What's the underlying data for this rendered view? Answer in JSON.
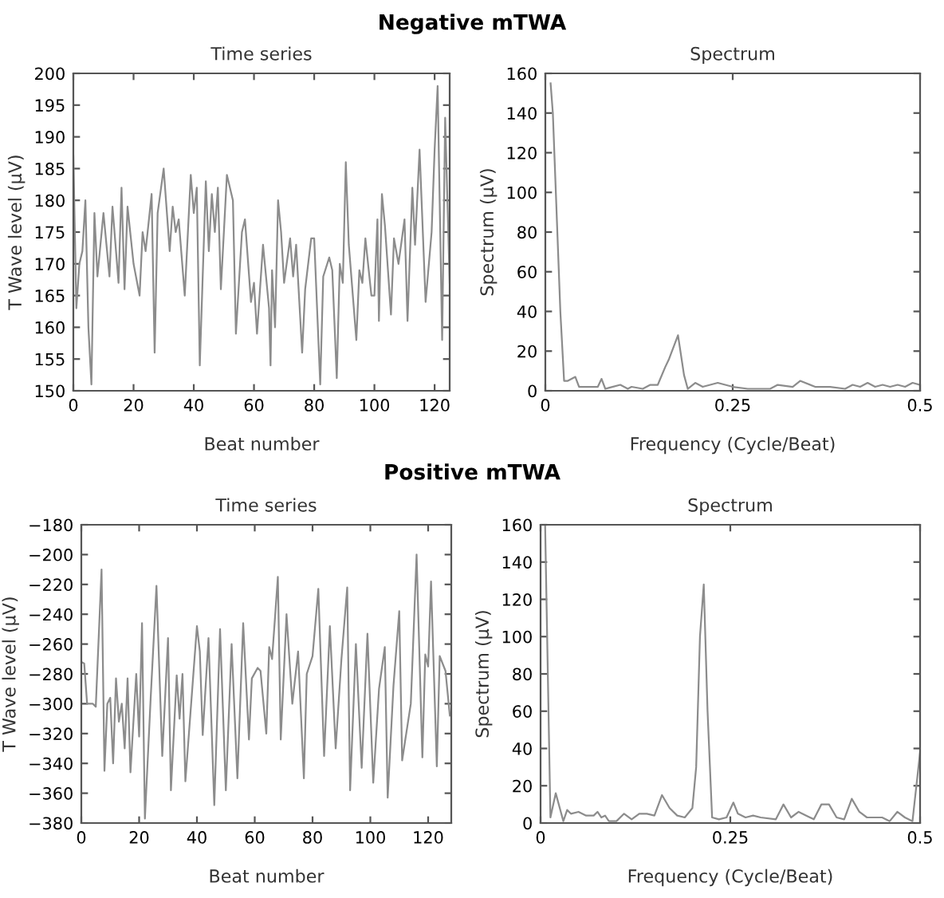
{
  "chart_data": [
    {
      "type": "line",
      "title": "Negative mTWA",
      "subtitle": "Time series",
      "xlabel": "Beat number",
      "ylabel": "T Wave level (μV)",
      "xlim": [
        0,
        125
      ],
      "ylim": [
        150,
        200
      ],
      "xticks": [
        0,
        20,
        40,
        60,
        80,
        100,
        120
      ],
      "yticks": [
        150,
        155,
        160,
        165,
        170,
        175,
        180,
        185,
        190,
        195,
        200
      ],
      "series": [
        {
          "color": "#8c8c8c",
          "x": [
            0,
            1,
            2,
            3,
            4,
            5,
            6,
            7,
            8,
            10,
            12,
            13,
            15,
            16,
            17,
            18,
            20,
            22,
            23,
            24,
            26,
            27,
            28,
            30,
            32,
            33,
            34,
            35,
            37,
            39,
            40,
            41,
            42,
            44,
            45,
            46,
            47,
            48,
            49,
            51,
            53,
            54,
            56,
            57,
            59,
            60,
            61,
            63,
            65,
            65.5,
            66,
            67,
            68,
            69,
            70,
            72,
            73,
            74,
            76,
            77,
            79,
            80,
            82,
            83,
            85,
            86,
            87.5,
            88.5,
            89.5,
            90.5,
            91.5,
            94,
            95,
            96,
            97,
            99,
            100,
            101,
            101.5,
            102.5,
            103.5,
            105.5,
            106.5,
            108,
            110,
            111,
            112.6,
            113.5,
            115,
            117,
            119,
            120,
            121,
            122.5,
            123.5,
            125
          ],
          "values": [
            187,
            163,
            170,
            172,
            180,
            160,
            151,
            178,
            168,
            178,
            168,
            179,
            167,
            182,
            166,
            179,
            170,
            165,
            175,
            172,
            181,
            156,
            178,
            185,
            172,
            179,
            175,
            177,
            165,
            184,
            178,
            182,
            154,
            183,
            172,
            181,
            175,
            182,
            166,
            184,
            180,
            159,
            175,
            177,
            164,
            167,
            159,
            173,
            163,
            154,
            169,
            160,
            180,
            175,
            167,
            174,
            168,
            173,
            156,
            166,
            174,
            174,
            151,
            168,
            171,
            169,
            152,
            170,
            167,
            186,
            173,
            158,
            169,
            167,
            174,
            165,
            165,
            177,
            161,
            181,
            176,
            162,
            174,
            170,
            177,
            161,
            182,
            173,
            188,
            164,
            175,
            188,
            198,
            158,
            193,
            167
          ]
        }
      ]
    },
    {
      "type": "line",
      "title": "Spectrum",
      "xlabel": "Frequency (Cycle/Beat)",
      "ylabel": "Spectrum (μV)",
      "xlim": [
        0,
        0.5
      ],
      "ylim": [
        0,
        160
      ],
      "xticks": [
        0,
        0.25,
        0.5
      ],
      "yticks": [
        0,
        20,
        40,
        60,
        80,
        100,
        120,
        140,
        160
      ],
      "series": [
        {
          "color": "#8c8c8c",
          "x": [
            0.007,
            0.01,
            0.02,
            0.025,
            0.03,
            0.04,
            0.045,
            0.07,
            0.075,
            0.08,
            0.1,
            0.11,
            0.115,
            0.13,
            0.14,
            0.15,
            0.16,
            0.165,
            0.177,
            0.185,
            0.19,
            0.2,
            0.21,
            0.23,
            0.24,
            0.25,
            0.27,
            0.3,
            0.31,
            0.33,
            0.34,
            0.36,
            0.38,
            0.4,
            0.41,
            0.42,
            0.43,
            0.44,
            0.45,
            0.46,
            0.47,
            0.48,
            0.49,
            0.5
          ],
          "values": [
            155,
            140,
            40,
            5,
            5,
            7,
            2,
            2,
            6,
            1,
            3,
            1,
            2,
            1,
            3,
            3,
            12,
            16,
            28,
            8,
            1,
            4,
            2,
            4,
            3,
            2,
            1,
            1,
            3,
            2,
            5,
            2,
            2,
            1,
            3,
            2,
            4,
            2,
            3,
            2,
            3,
            2,
            4,
            3
          ]
        }
      ]
    },
    {
      "type": "line",
      "title": "Positive mTWA",
      "subtitle": "Time series",
      "xlabel": "Beat number",
      "ylabel": "T Wave level (μV)",
      "xlim": [
        0,
        128
      ],
      "ylim": [
        -380,
        -180
      ],
      "xticks": [
        0,
        20,
        40,
        60,
        80,
        100,
        120
      ],
      "yticks": [
        {
          "value": -380,
          "label": "−380"
        },
        {
          "value": -360,
          "label": "−360"
        },
        {
          "value": -340,
          "label": "−340"
        },
        {
          "value": -320,
          "label": "−320"
        },
        {
          "value": -300,
          "label": "−300"
        },
        {
          "value": -280,
          "label": "−280"
        },
        {
          "value": -260,
          "label": "−260"
        },
        {
          "value": -240,
          "label": "−240"
        },
        {
          "value": -220,
          "label": "−220"
        },
        {
          "value": -200,
          "label": "−200"
        },
        {
          "value": -180,
          "label": "−180"
        }
      ],
      "series": [
        {
          "color": "#8c8c8c",
          "x": [
            0,
            1,
            2,
            4,
            5,
            7,
            8,
            9,
            10,
            11,
            12,
            13,
            14,
            15,
            16,
            17,
            19,
            20,
            21,
            22,
            24,
            26,
            28,
            30,
            31,
            33,
            34,
            35,
            36,
            38,
            40,
            41,
            42,
            44,
            46,
            48,
            50,
            52,
            54,
            56,
            58,
            59,
            61,
            62,
            64,
            65,
            66,
            68,
            69,
            71,
            73,
            75,
            77,
            78,
            80,
            82,
            84,
            86,
            88,
            90,
            92,
            93,
            95,
            97,
            99,
            101,
            103,
            105,
            106,
            108,
            110,
            111,
            114,
            116,
            118,
            119,
            120,
            121,
            123,
            124,
            126,
            127.5
          ],
          "values": [
            -272,
            -273,
            -300,
            -300,
            -302,
            -210,
            -345,
            -300,
            -296,
            -340,
            -283,
            -312,
            -300,
            -330,
            -283,
            -346,
            -280,
            -322,
            -246,
            -377,
            -296,
            -221,
            -335,
            -256,
            -358,
            -281,
            -310,
            -280,
            -352,
            -300,
            -248,
            -265,
            -321,
            -256,
            -368,
            -250,
            -358,
            -260,
            -350,
            -246,
            -324,
            -283,
            -276,
            -278,
            -320,
            -262,
            -270,
            -215,
            -324,
            -240,
            -300,
            -265,
            -350,
            -280,
            -268,
            -223,
            -335,
            -248,
            -330,
            -270,
            -222,
            -358,
            -260,
            -343,
            -253,
            -353,
            -290,
            -262,
            -363,
            -288,
            -238,
            -338,
            -300,
            -200,
            -336,
            -267,
            -275,
            -218,
            -342,
            -268,
            -278,
            -308
          ]
        }
      ]
    },
    {
      "type": "line",
      "title": "Spectrum",
      "xlabel": "Frequency (Cycle/Beat)",
      "ylabel": "Spectrum (μV)",
      "xlim": [
        0,
        0.5
      ],
      "ylim": [
        0,
        160
      ],
      "xticks": [
        0,
        0.25,
        0.5
      ],
      "yticks": [
        0,
        20,
        40,
        60,
        80,
        100,
        120,
        140,
        160
      ],
      "series": [
        {
          "color": "#8c8c8c",
          "x": [
            0.006,
            0.013,
            0.02,
            0.03,
            0.035,
            0.04,
            0.05,
            0.06,
            0.07,
            0.075,
            0.08,
            0.085,
            0.09,
            0.1,
            0.11,
            0.12,
            0.13,
            0.14,
            0.15,
            0.16,
            0.17,
            0.18,
            0.19,
            0.2,
            0.205,
            0.21,
            0.215,
            0.22,
            0.226,
            0.235,
            0.245,
            0.254,
            0.26,
            0.27,
            0.28,
            0.29,
            0.31,
            0.32,
            0.33,
            0.34,
            0.35,
            0.36,
            0.37,
            0.38,
            0.39,
            0.4,
            0.41,
            0.42,
            0.43,
            0.44,
            0.45,
            0.46,
            0.47,
            0.48,
            0.49,
            0.5
          ],
          "values": [
            160,
            3,
            16,
            1,
            7,
            5,
            6,
            4,
            4,
            6,
            3,
            4,
            1,
            1,
            5,
            2,
            5,
            5,
            4,
            15,
            8,
            4,
            3,
            8,
            30,
            100,
            128,
            60,
            3,
            2,
            3,
            11,
            5,
            3,
            4,
            3,
            2,
            10,
            3,
            6,
            4,
            2,
            10,
            10,
            3,
            2,
            13,
            6,
            3,
            3,
            3,
            1,
            6,
            3,
            1,
            38
          ]
        }
      ]
    }
  ]
}
